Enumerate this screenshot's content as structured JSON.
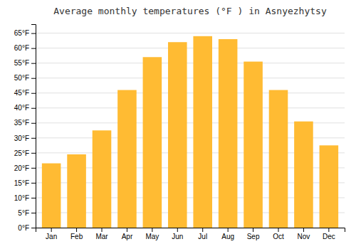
{
  "chart_data": {
    "type": "bar",
    "title": "Average monthly temperatures (°F ) in Asnyezhytsy",
    "categories": [
      "Jan",
      "Feb",
      "Mar",
      "Apr",
      "May",
      "Jun",
      "Jul",
      "Aug",
      "Sep",
      "Oct",
      "Nov",
      "Dec"
    ],
    "values": [
      21.5,
      24.5,
      32.5,
      46.0,
      57.0,
      62.0,
      64.0,
      63.0,
      55.5,
      46.0,
      35.5,
      27.5
    ],
    "color": "#FFBB33",
    "ylim": [
      0,
      68
    ],
    "yticks": [
      {
        "value": 0,
        "label": "0°F"
      },
      {
        "value": 5,
        "label": "5°F"
      },
      {
        "value": 10,
        "label": "10°F"
      },
      {
        "value": 15,
        "label": "15°F"
      },
      {
        "value": 20,
        "label": "20°F"
      },
      {
        "value": 25,
        "label": "25°F"
      },
      {
        "value": 30,
        "label": "30°F"
      },
      {
        "value": 35,
        "label": "35°F"
      },
      {
        "value": 40,
        "label": "40°F"
      },
      {
        "value": 45,
        "label": "45°F"
      },
      {
        "value": 50,
        "label": "50°F"
      },
      {
        "value": 55,
        "label": "55°F"
      },
      {
        "value": 60,
        "label": "60°F"
      },
      {
        "value": 65,
        "label": "65°F"
      }
    ],
    "grid": true
  }
}
